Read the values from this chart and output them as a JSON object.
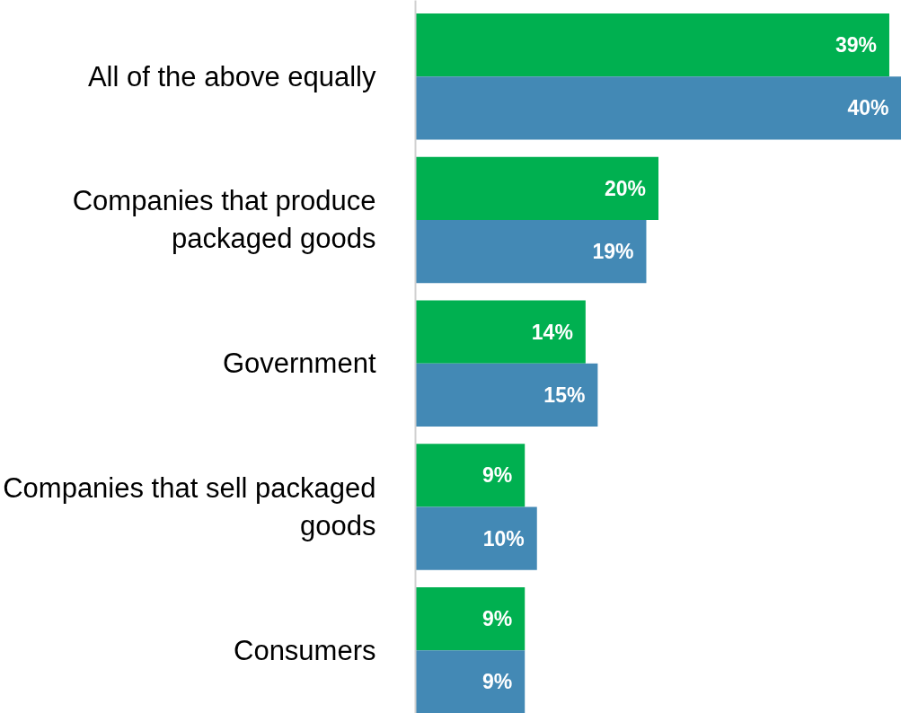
{
  "chart_data": {
    "type": "bar",
    "orientation": "horizontal",
    "categories": [
      "All of the above equally",
      "Companies that produce packaged goods",
      "Government",
      "Companies that sell packaged goods",
      "Consumers"
    ],
    "series": [
      {
        "color": "#00b050",
        "values": [
          39,
          20,
          14,
          9,
          9
        ],
        "value_labels": [
          "39%",
          "20%",
          "14%",
          "9%",
          "9%"
        ]
      },
      {
        "color": "#4389b5",
        "values": [
          40,
          19,
          15,
          10,
          9
        ],
        "value_labels": [
          "40%",
          "19%",
          "15%",
          "10%",
          "9%"
        ]
      }
    ],
    "xlim": [
      0,
      40
    ],
    "tick_labels": "y",
    "grid": false
  }
}
